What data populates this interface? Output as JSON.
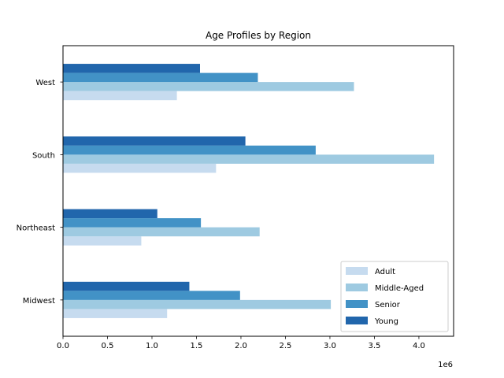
{
  "chart_data": {
    "type": "bar",
    "orientation": "horizontal",
    "title": "Age Profiles by Region",
    "xlabel": "",
    "ylabel": "",
    "x_offset_label": "1e6",
    "categories": [
      "Midwest",
      "Northeast",
      "South",
      "West"
    ],
    "series": [
      {
        "name": "Adult",
        "color": "#c6dbef",
        "values": [
          1170000,
          880000,
          1720000,
          1280000
        ]
      },
      {
        "name": "Middle-Aged",
        "color": "#9ecae1",
        "values": [
          3010000,
          2210000,
          4170000,
          3270000
        ]
      },
      {
        "name": "Senior",
        "color": "#4292c6",
        "values": [
          1990000,
          1550000,
          2840000,
          2190000
        ]
      },
      {
        "name": "Young",
        "color": "#2166ac",
        "values": [
          1420000,
          1060000,
          2050000,
          1540000
        ]
      }
    ],
    "xlim": [
      0,
      4390000
    ],
    "xticks": [
      0,
      500000,
      1000000,
      1500000,
      2000000,
      2500000,
      3000000,
      3500000,
      4000000
    ],
    "xtick_labels": [
      "0.0",
      "0.5",
      "1.0",
      "1.5",
      "2.0",
      "2.5",
      "3.0",
      "3.5",
      "4.0"
    ],
    "grid": false,
    "legend_position": "lower-right"
  }
}
